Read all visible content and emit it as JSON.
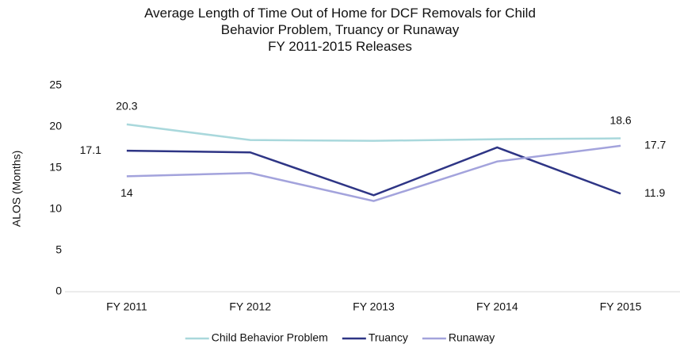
{
  "chart_data": {
    "type": "line",
    "title": "Average Length of Time Out of Home for DCF Removals for Child Behavior Problem, Truancy or Runaway",
    "subtitle": "FY 2011-2015 Releases",
    "y_label": "ALOS (Months)",
    "categories": [
      "FY 2011",
      "FY 2012",
      "FY 2013",
      "FY 2014",
      "FY 2015"
    ],
    "series": [
      {
        "name": "Child Behavior Problem",
        "color": "#a9d8dc",
        "values": [
          20.3,
          18.4,
          18.3,
          18.5,
          18.6
        ],
        "value_labels": [
          "20.3",
          null,
          null,
          null,
          "18.6"
        ]
      },
      {
        "name": "Truancy",
        "color": "#2e3585",
        "values": [
          17.1,
          16.9,
          11.7,
          17.5,
          11.9
        ],
        "value_labels": [
          "17.1",
          null,
          null,
          null,
          "11.9"
        ]
      },
      {
        "name": "Runaway",
        "color": "#a3a3dc",
        "values": [
          14,
          14.4,
          11.0,
          15.8,
          17.7
        ],
        "value_labels": [
          "14",
          null,
          null,
          null,
          "17.7"
        ]
      }
    ],
    "ylim": [
      0,
      25
    ],
    "yticks": [
      0,
      5,
      10,
      15,
      20,
      25
    ],
    "grid": false,
    "legend": "bottom"
  }
}
